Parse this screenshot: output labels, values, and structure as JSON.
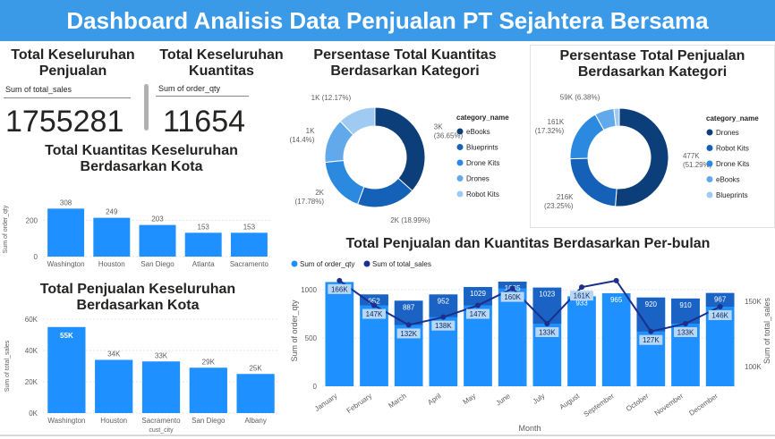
{
  "header": {
    "title": "Dashboard Analisis Data Penjualan PT Sejahtera Bersama"
  },
  "colors": {
    "banner": "#3a9ae8",
    "bar": "#1e90ff",
    "line": "#1c2f8a",
    "band": "#1a63c4",
    "label_bg": "#b8d7f5",
    "donut": [
      "#0c3f7a",
      "#1561b8",
      "#2b8ae0",
      "#62a9ec",
      "#9fcaf2"
    ]
  },
  "kpis": [
    {
      "title": "Total Keseluruhan Penjualan",
      "label": "Sum of total_sales",
      "value": "1755281"
    },
    {
      "title": "Total Keseluruhan Kuantitas",
      "label": "Sum of order_qty",
      "value": "11654"
    }
  ],
  "chart_data": [
    {
      "id": "qty_by_city",
      "type": "bar",
      "title": "Total Kuantitas Keseluruhan Berdasarkan Kota",
      "xlabel": "cust_city",
      "ylabel": "Sum of order_qty",
      "categories": [
        "Washington",
        "Houston",
        "San Diego",
        "Atlanta",
        "Sacramento"
      ],
      "values": [
        308,
        249,
        203,
        153,
        153
      ],
      "value_labels": [
        "308",
        "249",
        "203",
        "153",
        "153"
      ],
      "yticks": [
        "0",
        "200"
      ],
      "ylim": [
        0,
        350
      ]
    },
    {
      "id": "sales_by_city",
      "type": "bar",
      "title": "Total Penjualan Keseluruhan Berdasarkan Kota",
      "xlabel": "cust_city",
      "ylabel": "Sum of total_sales",
      "categories": [
        "Washington",
        "Houston",
        "Sacramento",
        "San Diego",
        "Albany"
      ],
      "values": [
        55000,
        34000,
        33000,
        29000,
        25000
      ],
      "value_labels": [
        "55K",
        "34K",
        "33K",
        "29K",
        "25K"
      ],
      "yticks": [
        "0K",
        "20K",
        "40K",
        "60K"
      ],
      "ylim": [
        0,
        60000
      ]
    },
    {
      "id": "qty_pct_by_category",
      "type": "pie",
      "title": "Persentase Total Kuantitas Berdasarkan Kategori",
      "legend_title": "category_name",
      "legend_position": "right",
      "labels": [
        "eBooks",
        "Blueprints",
        "Drone Kits",
        "Drones",
        "Robot Kits"
      ],
      "values": [
        36.65,
        18.99,
        17.78,
        14.4,
        12.17
      ],
      "slice_labels": [
        [
          "3K",
          "(36.65%)"
        ],
        [
          "2K (18.99%)"
        ],
        [
          "2K",
          "(17.78%)"
        ],
        [
          "1K",
          "(14.4%)"
        ],
        [
          "1K (12.17%)"
        ]
      ]
    },
    {
      "id": "sales_pct_by_category",
      "type": "pie",
      "title": "Persentase Total Penjualan Berdasarkan Kategori",
      "legend_title": "category_name",
      "legend_position": "right",
      "labels": [
        "Drones",
        "Robot Kits",
        "Drone Kits",
        "eBooks",
        "Blueprints"
      ],
      "values": [
        51.29,
        23.25,
        17.32,
        6.38,
        1.76
      ],
      "slice_labels": [
        [
          "477K",
          "(51.29%)"
        ],
        [
          "216K",
          "(23.25%)"
        ],
        [
          "161K",
          "(17.32%)"
        ],
        [
          "59K (6.38%)"
        ],
        []
      ]
    },
    {
      "id": "monthly_sales_qty",
      "type": "bar",
      "title": "Total Penjualan dan Kuantitas Berdasarkan Per-bulan",
      "xlabel": "Month",
      "ylabel": "Sum of order_qty",
      "ylabel_right": "Sum of total_sales",
      "legend_position": "top-left",
      "categories": [
        "January",
        "February",
        "March",
        "April",
        "May",
        "June",
        "July",
        "August",
        "September",
        "October",
        "November",
        "December"
      ],
      "series": [
        {
          "name": "Sum of order_qty",
          "kind": "bar",
          "values": [
            1081,
            952,
            887,
            952,
            1029,
            1085,
            1023,
            933,
            965,
            920,
            910,
            967
          ],
          "value_labels": [
            "1081",
            "952",
            "887",
            "952",
            "1029",
            "1085",
            "1023",
            "933",
            "965",
            "920",
            "910",
            "967"
          ]
        },
        {
          "name": "Sum of total_sales",
          "kind": "line",
          "values": [
            166000,
            147000,
            132000,
            138000,
            147000,
            160000,
            133000,
            161000,
            166000,
            127000,
            133000,
            146000
          ],
          "value_labels": [
            "166K",
            "147K",
            "132K",
            "138K",
            "147K",
            "160K",
            "133K",
            "161K",
            "",
            "127K",
            "133K",
            "146K"
          ]
        }
      ],
      "yticks": [
        "0",
        "500",
        "1000"
      ],
      "yticks_right": [
        "100K",
        "150K"
      ],
      "ylim": [
        0,
        1150
      ],
      "ylim_right": [
        85000,
        170000
      ]
    }
  ]
}
